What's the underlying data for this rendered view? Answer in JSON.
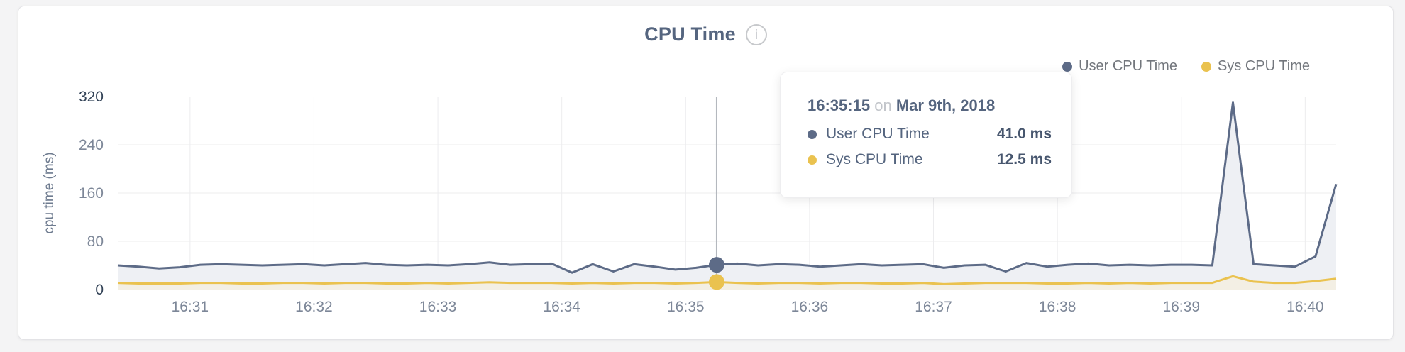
{
  "header": {
    "title": "CPU Time"
  },
  "icons": {
    "info_glyph": "i"
  },
  "legend": [
    {
      "label": "User CPU Time",
      "color": "#5d6b87"
    },
    {
      "label": "Sys CPU Time",
      "color": "#eac24f"
    }
  ],
  "tooltip": {
    "time": "16:35:15",
    "on_word": "on",
    "date": "Mar 9th, 2018",
    "rows": [
      {
        "label": "User CPU Time",
        "value": "41.0 ms",
        "color": "#5d6b87"
      },
      {
        "label": "Sys CPU Time",
        "value": "12.5 ms",
        "color": "#eac24f"
      }
    ]
  },
  "chart_data": {
    "type": "area",
    "title": "CPU Time",
    "xlabel": "",
    "ylabel": "cpu time (ms)",
    "ylim": [
      0,
      320
    ],
    "yticks": [
      0,
      80,
      160,
      240,
      320
    ],
    "xticks": [
      "16:31",
      "16:32",
      "16:33",
      "16:34",
      "16:35",
      "16:36",
      "16:37",
      "16:38",
      "16:39",
      "16:40"
    ],
    "grid": true,
    "legend_position": "top-right",
    "x": [
      "16:30:25",
      "16:30:35",
      "16:30:45",
      "16:30:55",
      "16:31:05",
      "16:31:15",
      "16:31:25",
      "16:31:35",
      "16:31:45",
      "16:31:55",
      "16:32:05",
      "16:32:15",
      "16:32:25",
      "16:32:35",
      "16:32:45",
      "16:32:55",
      "16:33:05",
      "16:33:15",
      "16:33:25",
      "16:33:35",
      "16:33:45",
      "16:33:55",
      "16:34:05",
      "16:34:15",
      "16:34:25",
      "16:34:35",
      "16:34:45",
      "16:34:55",
      "16:35:05",
      "16:35:15",
      "16:35:25",
      "16:35:35",
      "16:35:45",
      "16:35:55",
      "16:36:05",
      "16:36:15",
      "16:36:25",
      "16:36:35",
      "16:36:45",
      "16:36:55",
      "16:37:05",
      "16:37:15",
      "16:37:25",
      "16:37:35",
      "16:37:45",
      "16:37:55",
      "16:38:05",
      "16:38:15",
      "16:38:25",
      "16:38:35",
      "16:38:45",
      "16:38:55",
      "16:39:05",
      "16:39:15",
      "16:39:25",
      "16:39:35",
      "16:39:45",
      "16:39:55",
      "16:40:05",
      "16:40:15"
    ],
    "series": [
      {
        "name": "User CPU Time",
        "key": "user",
        "color": "#5d6b87",
        "fill": "#eef0f4",
        "values": [
          40,
          38,
          35,
          37,
          41,
          42,
          41,
          40,
          41,
          42,
          40,
          42,
          44,
          41,
          40,
          41,
          40,
          42,
          45,
          41,
          42,
          43,
          28,
          42,
          30,
          42,
          38,
          33,
          36,
          41,
          43,
          40,
          42,
          41,
          38,
          40,
          42,
          40,
          41,
          42,
          36,
          40,
          41,
          30,
          44,
          38,
          41,
          43,
          40,
          41,
          40,
          41,
          41,
          40,
          310,
          42,
          40,
          38,
          55,
          175
        ]
      },
      {
        "name": "Sys CPU Time",
        "key": "sys",
        "color": "#eac24f",
        "fill": "#f3efe4",
        "values": [
          11,
          10,
          10,
          10,
          11,
          11,
          10,
          10,
          11,
          11,
          10,
          11,
          11,
          10,
          10,
          11,
          10,
          11,
          12,
          11,
          11,
          11,
          10,
          11,
          10,
          11,
          11,
          10,
          11,
          12.5,
          11,
          10,
          11,
          11,
          10,
          11,
          11,
          10,
          10,
          11,
          9,
          10,
          11,
          11,
          11,
          10,
          10,
          11,
          10,
          11,
          10,
          11,
          11,
          11,
          22,
          13,
          11,
          11,
          14,
          18
        ]
      }
    ],
    "highlight": {
      "time": "16:35:15",
      "values": [
        41.0,
        12.5
      ]
    },
    "colors": {
      "grid": "#ececee",
      "tick": "#7d8798",
      "tick_strong": "#344458",
      "axis_label": "#6e7b8f",
      "crosshair": "#b4b8be"
    }
  }
}
